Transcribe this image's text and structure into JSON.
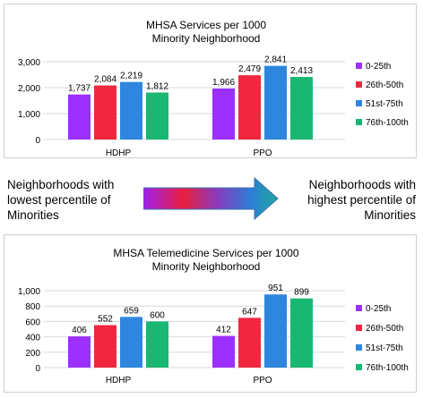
{
  "chart_data": [
    {
      "type": "bar",
      "title_lines": [
        "MHSA Services per 1000",
        "Minority Neighborhood"
      ],
      "categories": [
        "HDHP",
        "PPO"
      ],
      "series": [
        {
          "name": "0-25th",
          "values": [
            1737,
            1966
          ],
          "labels": [
            "1,737",
            "1,966"
          ],
          "color": "#9b30ff"
        },
        {
          "name": "26th-50th",
          "values": [
            2084,
            2479
          ],
          "labels": [
            "2,084",
            "2,479"
          ],
          "color": "#f0273f"
        },
        {
          "name": "51st-75th",
          "values": [
            2219,
            2841
          ],
          "labels": [
            "2,219",
            "2,841"
          ],
          "color": "#2f86de"
        },
        {
          "name": "76th-100th",
          "values": [
            1812,
            2413
          ],
          "labels": [
            "1,812",
            "2,413"
          ],
          "color": "#18b872"
        }
      ],
      "ylim": [
        0,
        3000
      ],
      "yticks": [
        0,
        1000,
        2000,
        3000
      ],
      "ytick_labels": [
        "0",
        "1,000",
        "2,000",
        "3,000"
      ],
      "grid": true,
      "legend_position": "right"
    },
    {
      "type": "bar",
      "title_lines": [
        "MHSA Telemedicine Services per 1000",
        "Minority Neighborhood"
      ],
      "categories": [
        "HDHP",
        "PPO"
      ],
      "series": [
        {
          "name": "0-25th",
          "values": [
            406,
            412
          ],
          "labels": [
            "406",
            "412"
          ],
          "color": "#9b30ff"
        },
        {
          "name": "26th-50th",
          "values": [
            552,
            647
          ],
          "labels": [
            "552",
            "647"
          ],
          "color": "#f0273f"
        },
        {
          "name": "51st-75th",
          "values": [
            659,
            951
          ],
          "labels": [
            "659",
            "951"
          ],
          "color": "#2f86de"
        },
        {
          "name": "76th-100th",
          "values": [
            600,
            899
          ],
          "labels": [
            "600",
            "899"
          ],
          "color": "#18b872"
        }
      ],
      "ylim": [
        0,
        1000
      ],
      "yticks": [
        0,
        200,
        400,
        600,
        800,
        1000
      ],
      "ytick_labels": [
        "0",
        "200",
        "400",
        "600",
        "800",
        "1,000"
      ],
      "grid": true,
      "legend_position": "right"
    }
  ],
  "middle": {
    "left_lines": [
      "Neighborhoods with",
      "lowest percentile of",
      "Minorities"
    ],
    "right_lines": [
      "Neighborhoods with",
      "highest percentile of",
      "Minorities"
    ],
    "arrow_gradient": [
      "#a020f0",
      "#e8203c",
      "#8a3bbd",
      "#2b7fd6",
      "#1fa89a"
    ]
  }
}
